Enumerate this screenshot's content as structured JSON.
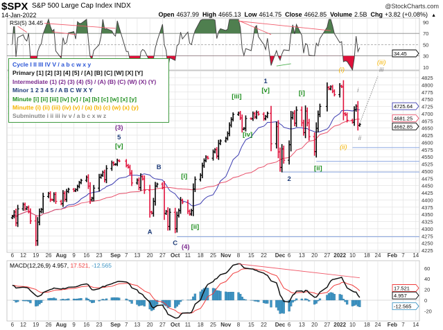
{
  "header": {
    "symbol": "$SPX",
    "name": "S&P 500 Large Cap Index  INDX",
    "source": "@StockCharts.com",
    "date": "14-Jan-2022",
    "ohlc": [
      [
        "Open",
        "4637.99"
      ],
      [
        "High",
        "4665.13"
      ],
      [
        "Low",
        "4614.75"
      ],
      [
        "Close",
        "4662.85"
      ],
      [
        "Volume",
        "2.5B"
      ],
      [
        "Chg",
        "+3.82 (+0.08%)"
      ]
    ],
    "chg_arrow": "▲"
  },
  "legend": [
    {
      "text": "Cycle I II III IV V / a b c w x y",
      "color": "#2b55d6"
    },
    {
      "text": "Primary [1] [2] [3] [4] [5] / [A] [B] [C] [W] [X] [Y]",
      "color": "#111111"
    },
    {
      "text": "Intermediate (1) (2) (3) (4) (5) / (A) (B) (C) (W) (X) (Y)",
      "color": "#7b2a8e"
    },
    {
      "text": "Minor 1 2 3 4 5 / A B C W X Y",
      "color": "#1f3d7a"
    },
    {
      "text": "Minute [i] [ii] [iii] [iv] [v] / [a] [b] [c] [w] [x] [y]",
      "color": "#1f8f1f"
    },
    {
      "text": "Minutte (i) (ii) (iii) (iv) (v) / (a) (b) (c) (w) (x) (y)",
      "color": "#f5b400"
    },
    {
      "text": "Subminutte i ii iii iv v / a b c x w z",
      "color": "#8a8a8a"
    }
  ],
  "colors": {
    "up": "#000000",
    "down": "#e0103a",
    "ma_short": "#3b3bb0",
    "ma_long": "#e8506a",
    "rsi_fill_high": "#4f7f4f",
    "rsi_fill_low": "#e0103a",
    "macd": "#111111",
    "signal": "#f03c3c",
    "histogram": "#3f95c4",
    "grid": "#e3e3e3",
    "support": "#8aa6e0"
  },
  "rsi": {
    "label": "RSI(5) 34.45",
    "period": 5,
    "current": "34.45",
    "levels": [
      90,
      70,
      50,
      30,
      10
    ],
    "ylim": [
      10,
      95
    ],
    "trendlines": [
      {
        "from": [
          "2021-07-06",
          89
        ],
        "to": [
          "2021-07-14",
          72
        ],
        "color": "#f05a6a"
      },
      {
        "from": [
          "2021-07-06",
          92
        ],
        "to": [
          "2021-09-01",
          79
        ],
        "color": "#f05a6a"
      },
      {
        "from": [
          "2021-07-28",
          73
        ],
        "to": [
          "2021-08-10",
          68
        ],
        "color": "#f05a6a"
      },
      {
        "from": [
          "2021-11-08",
          93
        ],
        "to": [
          "2021-11-26",
          68
        ],
        "color": "#f05a6a"
      },
      {
        "from": [
          "2021-11-08",
          92
        ],
        "to": [
          "2021-12-29",
          75
        ],
        "color": "#f05a6a"
      },
      {
        "from": [
          "2021-11-29",
          12
        ],
        "to": [
          "2021-12-07",
          16
        ],
        "color": "#4caf50"
      }
    ]
  },
  "chart_data": {
    "type": "ohlc",
    "title": "$SPX S&P 500 Large Cap Index",
    "ylim": [
      4225,
      4825
    ],
    "xlim": [
      "2021-07-03",
      "2022-02-16"
    ],
    "y_ticks": [
      4225,
      4250,
      4275,
      4300,
      4325,
      4350,
      4375,
      4400,
      4425,
      4450,
      4475,
      4500,
      4525,
      4550,
      4575,
      4600,
      4625,
      4650,
      4675,
      4700,
      4725,
      4750,
      4775,
      4800,
      4825
    ],
    "x_ticks": [
      [
        "2021-07-06",
        "6"
      ],
      [
        "2021-07-12",
        "12"
      ],
      [
        "2021-07-19",
        "19"
      ],
      [
        "2021-07-26",
        "26"
      ],
      [
        "2021-08-02",
        "Aug"
      ],
      [
        "2021-08-09",
        "9"
      ],
      [
        "2021-08-16",
        "16"
      ],
      [
        "2021-08-23",
        "23"
      ],
      [
        "2021-09-01",
        "Sep"
      ],
      [
        "2021-09-07",
        "7"
      ],
      [
        "2021-09-13",
        "13"
      ],
      [
        "2021-09-20",
        "20"
      ],
      [
        "2021-09-27",
        "27"
      ],
      [
        "2021-10-04",
        "Oct"
      ],
      [
        "2021-10-11",
        "11"
      ],
      [
        "2021-10-18",
        "18"
      ],
      [
        "2021-10-25",
        "25"
      ],
      [
        "2021-11-01",
        "Nov"
      ],
      [
        "2021-11-08",
        "8"
      ],
      [
        "2021-11-15",
        "15"
      ],
      [
        "2021-11-22",
        "22"
      ],
      [
        "2021-12-01",
        "Dec"
      ],
      [
        "2021-12-06",
        "6"
      ],
      [
        "2021-12-13",
        "13"
      ],
      [
        "2021-12-20",
        "20"
      ],
      [
        "2021-12-27",
        "27"
      ],
      [
        "2022-01-03",
        "2022"
      ],
      [
        "2022-01-10",
        "10"
      ],
      [
        "2022-01-18",
        "18"
      ],
      [
        "2022-01-24",
        "24"
      ],
      [
        "2022-02-01",
        "Feb"
      ],
      [
        "2022-02-07",
        "7"
      ],
      [
        "2022-02-14",
        "14"
      ]
    ],
    "grid": true,
    "moving_averages": [
      {
        "period": 20,
        "color": "#3b3bb0",
        "last": "4725.64"
      },
      {
        "period": 50,
        "color": "#e8506a",
        "last": "4681.25"
      }
    ],
    "last_close": "4662.85",
    "closes": [
      [
        "2021-07-06",
        4343
      ],
      [
        "2021-07-07",
        4358
      ],
      [
        "2021-07-08",
        4320
      ],
      [
        "2021-07-09",
        4369
      ],
      [
        "2021-07-12",
        4384
      ],
      [
        "2021-07-13",
        4369
      ],
      [
        "2021-07-14",
        4374
      ],
      [
        "2021-07-15",
        4360
      ],
      [
        "2021-07-16",
        4327
      ],
      [
        "2021-07-19",
        4258
      ],
      [
        "2021-07-20",
        4323
      ],
      [
        "2021-07-21",
        4359
      ],
      [
        "2021-07-22",
        4367
      ],
      [
        "2021-07-23",
        4412
      ],
      [
        "2021-07-26",
        4422
      ],
      [
        "2021-07-27",
        4401
      ],
      [
        "2021-07-28",
        4400
      ],
      [
        "2021-07-29",
        4419
      ],
      [
        "2021-07-30",
        4395
      ],
      [
        "2021-08-02",
        4387
      ],
      [
        "2021-08-03",
        4423
      ],
      [
        "2021-08-04",
        4402
      ],
      [
        "2021-08-05",
        4429
      ],
      [
        "2021-08-06",
        4437
      ],
      [
        "2021-08-09",
        4432
      ],
      [
        "2021-08-10",
        4436
      ],
      [
        "2021-08-11",
        4447
      ],
      [
        "2021-08-12",
        4460
      ],
      [
        "2021-08-13",
        4468
      ],
      [
        "2021-08-16",
        4479
      ],
      [
        "2021-08-17",
        4448
      ],
      [
        "2021-08-18",
        4400
      ],
      [
        "2021-08-19",
        4406
      ],
      [
        "2021-08-20",
        4441
      ],
      [
        "2021-08-23",
        4479
      ],
      [
        "2021-08-24",
        4486
      ],
      [
        "2021-08-25",
        4496
      ],
      [
        "2021-08-26",
        4470
      ],
      [
        "2021-08-27",
        4509
      ],
      [
        "2021-08-30",
        4529
      ],
      [
        "2021-08-31",
        4523
      ],
      [
        "2021-09-01",
        4524
      ],
      [
        "2021-09-02",
        4537
      ],
      [
        "2021-09-03",
        4535
      ],
      [
        "2021-09-07",
        4520
      ],
      [
        "2021-09-08",
        4514
      ],
      [
        "2021-09-09",
        4493
      ],
      [
        "2021-09-10",
        4459
      ],
      [
        "2021-09-13",
        4469
      ],
      [
        "2021-09-14",
        4443
      ],
      [
        "2021-09-15",
        4481
      ],
      [
        "2021-09-16",
        4473
      ],
      [
        "2021-09-17",
        4433
      ],
      [
        "2021-09-20",
        4358
      ],
      [
        "2021-09-21",
        4354
      ],
      [
        "2021-09-22",
        4395
      ],
      [
        "2021-09-23",
        4448
      ],
      [
        "2021-09-24",
        4455
      ],
      [
        "2021-09-27",
        4443
      ],
      [
        "2021-09-28",
        4353
      ],
      [
        "2021-09-29",
        4360
      ],
      [
        "2021-09-30",
        4308
      ],
      [
        "2021-10-01",
        4357
      ],
      [
        "2021-10-04",
        4300
      ],
      [
        "2021-10-05",
        4346
      ],
      [
        "2021-10-06",
        4363
      ],
      [
        "2021-10-07",
        4399
      ],
      [
        "2021-10-08",
        4391
      ],
      [
        "2021-10-11",
        4361
      ],
      [
        "2021-10-12",
        4351
      ],
      [
        "2021-10-13",
        4363
      ],
      [
        "2021-10-14",
        4438
      ],
      [
        "2021-10-15",
        4471
      ],
      [
        "2021-10-18",
        4486
      ],
      [
        "2021-10-19",
        4519
      ],
      [
        "2021-10-20",
        4537
      ],
      [
        "2021-10-21",
        4549
      ],
      [
        "2021-10-22",
        4545
      ],
      [
        "2021-10-25",
        4567
      ],
      [
        "2021-10-26",
        4575
      ],
      [
        "2021-10-27",
        4552
      ],
      [
        "2021-10-28",
        4596
      ],
      [
        "2021-10-29",
        4605
      ],
      [
        "2021-11-01",
        4614
      ],
      [
        "2021-11-02",
        4631
      ],
      [
        "2021-11-03",
        4660
      ],
      [
        "2021-11-04",
        4680
      ],
      [
        "2021-11-05",
        4697
      ],
      [
        "2021-11-08",
        4702
      ],
      [
        "2021-11-09",
        4685
      ],
      [
        "2021-11-10",
        4646
      ],
      [
        "2021-11-11",
        4649
      ],
      [
        "2021-11-12",
        4683
      ],
      [
        "2021-11-15",
        4682
      ],
      [
        "2021-11-16",
        4700
      ],
      [
        "2021-11-17",
        4688
      ],
      [
        "2021-11-18",
        4704
      ],
      [
        "2021-11-19",
        4698
      ],
      [
        "2021-11-22",
        4682
      ],
      [
        "2021-11-23",
        4690
      ],
      [
        "2021-11-24",
        4701
      ],
      [
        "2021-11-26",
        4595
      ],
      [
        "2021-11-29",
        4655
      ],
      [
        "2021-11-30",
        4567
      ],
      [
        "2021-12-01",
        4513
      ],
      [
        "2021-12-02",
        4577
      ],
      [
        "2021-12-03",
        4538
      ],
      [
        "2021-12-06",
        4592
      ],
      [
        "2021-12-07",
        4686
      ],
      [
        "2021-12-08",
        4701
      ],
      [
        "2021-12-09",
        4667
      ],
      [
        "2021-12-10",
        4712
      ],
      [
        "2021-12-13",
        4668
      ],
      [
        "2021-12-14",
        4634
      ],
      [
        "2021-12-15",
        4709
      ],
      [
        "2021-12-16",
        4668
      ],
      [
        "2021-12-17",
        4620
      ],
      [
        "2021-12-20",
        4568
      ],
      [
        "2021-12-21",
        4649
      ],
      [
        "2021-12-22",
        4697
      ],
      [
        "2021-12-23",
        4725
      ],
      [
        "2021-12-27",
        4791
      ],
      [
        "2021-12-28",
        4786
      ],
      [
        "2021-12-29",
        4793
      ],
      [
        "2021-12-30",
        4778
      ],
      [
        "2021-12-31",
        4766
      ],
      [
        "2022-01-03",
        4796
      ],
      [
        "2022-01-04",
        4793
      ],
      [
        "2022-01-05",
        4700
      ],
      [
        "2022-01-06",
        4696
      ],
      [
        "2022-01-07",
        4677
      ],
      [
        "2022-01-10",
        4670
      ],
      [
        "2022-01-11",
        4713
      ],
      [
        "2022-01-12",
        4726
      ],
      [
        "2022-01-13",
        4659
      ],
      [
        "2022-01-14",
        4662.85
      ]
    ],
    "wave_labels": [
      {
        "date": "2021-09-03",
        "price": 4644,
        "text": "(3)",
        "color": "#7b2a8e"
      },
      {
        "date": "2021-09-03",
        "price": 4611,
        "text": "5",
        "color": "#1f3d7a"
      },
      {
        "date": "2021-09-03",
        "price": 4580,
        "text": "[v]",
        "color": "#1f8f1f"
      },
      {
        "date": "2021-09-20",
        "price": 4282,
        "text": "A",
        "color": "#1f3d7a"
      },
      {
        "date": "2021-09-25",
        "price": 4507,
        "text": "B",
        "color": "#1f3d7a"
      },
      {
        "date": "2021-10-04",
        "price": 4243,
        "text": "C",
        "color": "#1f3d7a"
      },
      {
        "date": "2021-10-04",
        "price": 4210,
        "text": "(4)",
        "color": "#7b2a8e"
      },
      {
        "date": "2021-10-09",
        "price": 4476,
        "text": "[i]",
        "color": "#1f8f1f"
      },
      {
        "date": "2021-10-15",
        "price": 4300,
        "text": "[ii]",
        "color": "#1f8f1f"
      },
      {
        "date": "2021-11-07",
        "price": 4753,
        "text": "[iii]",
        "color": "#1f8f1f"
      },
      {
        "date": "2021-11-13",
        "price": 4620,
        "text": "[iv]",
        "color": "#1f8f1f"
      },
      {
        "date": "2021-11-23",
        "price": 4806,
        "text": "1",
        "color": "#1f3d7a"
      },
      {
        "date": "2021-11-23",
        "price": 4774,
        "text": "[v]",
        "color": "#1f8f1f"
      },
      {
        "date": "2021-12-06",
        "price": 4466,
        "text": "2",
        "color": "#1f3d7a"
      },
      {
        "date": "2021-12-13",
        "price": 4765,
        "text": "[i]",
        "color": "#1f8f1f"
      },
      {
        "date": "2021-12-22",
        "price": 4503,
        "text": "[ii]",
        "color": "#1f8f1f"
      },
      {
        "date": "2022-01-04",
        "price": 4846,
        "text": "(i)",
        "color": "#f5b400",
        "italic": true
      },
      {
        "date": "2022-01-05",
        "price": 4577,
        "text": "(ii)",
        "color": "#f5b400",
        "italic": true
      },
      {
        "date": "2022-01-13",
        "price": 4774,
        "text": "i",
        "color": "#8a8a8a",
        "italic": true
      },
      {
        "date": "2022-01-14",
        "price": 4608,
        "text": "ii",
        "color": "#8a8a8a",
        "italic": true
      },
      {
        "date": "2022-01-26",
        "price": 4872,
        "text": "(iii)",
        "color": "#f5b400",
        "italic": true
      },
      {
        "date": "2022-01-26",
        "price": 4845,
        "text": "iii",
        "color": "#8a8a8a",
        "italic": true
      }
    ],
    "support_lines": [
      {
        "from": "2021-10-05",
        "price": 4272
      },
      {
        "from": "2021-12-02",
        "price": 4497
      },
      {
        "from": "2021-12-21",
        "price": 4534
      },
      {
        "from": "2022-01-10",
        "price": 4582
      }
    ],
    "projection": {
      "from": [
        "2022-01-14",
        4666
      ],
      "to": [
        "2022-01-24",
        4830
      ],
      "color": "#888888"
    }
  },
  "macd": {
    "label_name": "MACD(12,26,9)",
    "values": [
      "4.957",
      "17.521",
      "-12.565"
    ],
    "fast": 12,
    "slow": 26,
    "signal": 9,
    "y_ticks": [
      60,
      40,
      20,
      0,
      -20
    ],
    "ylim": [
      -35,
      80
    ],
    "trendline": {
      "from": [
        "2021-11-08",
        68
      ],
      "to": [
        "2022-01-14",
        42
      ],
      "color": "#f05a6a"
    }
  }
}
